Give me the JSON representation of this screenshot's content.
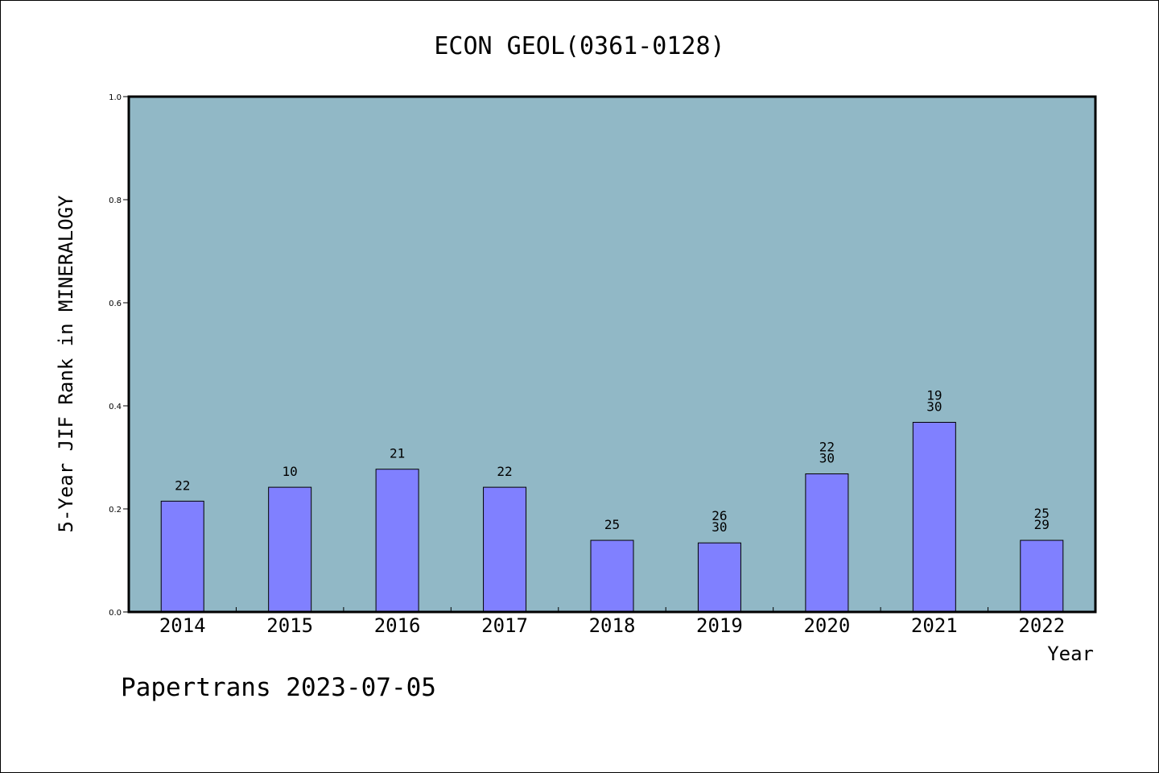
{
  "chart_data": {
    "type": "bar",
    "title": "ECON GEOL(0361-0128)",
    "xlabel": "Year",
    "ylabel": "5-Year JIF Rank in MINERALOGY",
    "ylim": [
      0,
      1.0
    ],
    "yticks": [
      "0.0",
      "0.2",
      "0.4",
      "0.6",
      "0.8",
      "1.0"
    ],
    "categories": [
      "2014",
      "2015",
      "2016",
      "2017",
      "2018",
      "2019",
      "2020",
      "2021",
      "2022"
    ],
    "values": [
      0.215,
      0.242,
      0.277,
      0.242,
      0.139,
      0.134,
      0.268,
      0.368,
      0.139
    ],
    "data_labels": [
      [
        "22"
      ],
      [
        "10"
      ],
      [
        "21"
      ],
      [
        "22"
      ],
      [
        "25"
      ],
      [
        "26",
        "30"
      ],
      [
        "22",
        "30"
      ],
      [
        "19",
        "30"
      ],
      [
        "25",
        "29"
      ]
    ],
    "grid": false,
    "colors": {
      "bar": "#8080ff",
      "plot_background": "#91b8c6",
      "bar_stroke": "#000000"
    }
  },
  "footer": "Papertrans 2023-07-05"
}
